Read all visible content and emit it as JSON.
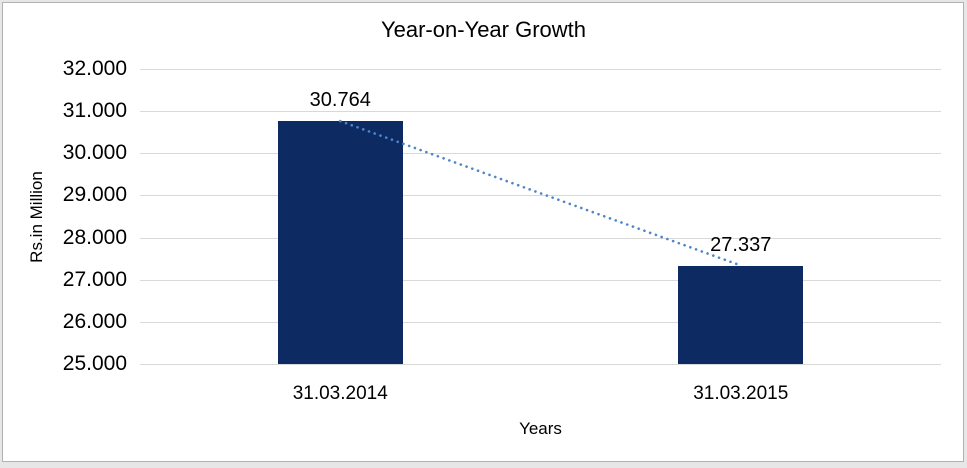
{
  "chart_data": {
    "type": "bar",
    "title": "Year-on-Year Growth",
    "xlabel": "Years",
    "ylabel": "Rs.in Million",
    "categories": [
      "31.03.2014",
      "31.03.2015"
    ],
    "values": [
      30764,
      27337
    ],
    "data_labels": [
      "30.764",
      "27.337"
    ],
    "ylim": [
      25000,
      32000
    ],
    "ytick_step": 1000,
    "ytick_labels": [
      "25.000",
      "26.000",
      "27.000",
      "28.000",
      "29.000",
      "30.000",
      "31.000",
      "32.000"
    ],
    "grid": true,
    "legend": false,
    "trendline": {
      "style": "dotted",
      "connects": [
        "31.03.2014",
        "31.03.2015"
      ]
    },
    "colors": {
      "bar": "#0d2a63",
      "trendline": "#4f86c9",
      "gridline": "#d9d9d9",
      "text": "#000000",
      "frame_border": "#b2b2b2",
      "outer_band": "#e7e7e7",
      "plot_background": "#ffffff"
    }
  }
}
